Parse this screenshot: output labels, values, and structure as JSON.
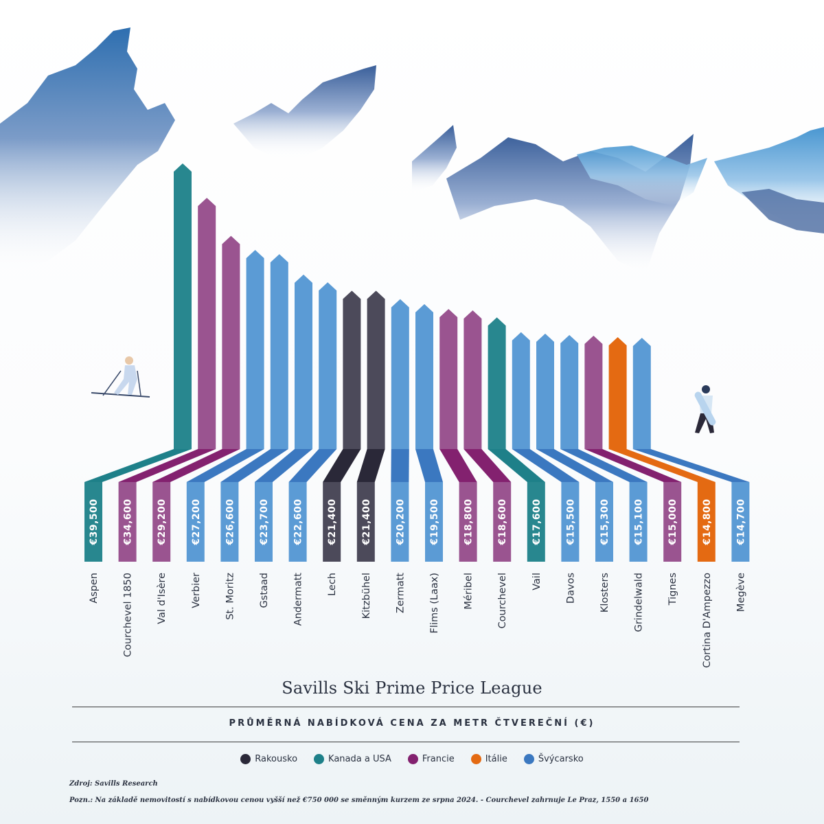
{
  "chart_data": {
    "type": "bar",
    "title": "Savills Ski Prime Price League",
    "ylabel": "PRŮMĚRNÁ NABÍDKOVÁ CENA ZA METR ČTVEREČNÍ (€)",
    "categories": [
      "Aspen",
      "Courchevel 1850",
      "Val d'Isère",
      "Verbier",
      "St. Moritz",
      "Gstaad",
      "Andermatt",
      "Lech",
      "Kitzbühel",
      "Zermatt",
      "Flims (Laax)",
      "Méribel",
      "Courchevel",
      "Vail",
      "Davos",
      "Klosters",
      "Grindelwald",
      "Tignes",
      "Cortina D'Ampezzo",
      "Megève"
    ],
    "values": [
      39500,
      34600,
      29200,
      27200,
      26600,
      23700,
      22600,
      21400,
      21400,
      20200,
      19500,
      18800,
      18600,
      17600,
      15500,
      15300,
      15100,
      15000,
      14800,
      14700
    ],
    "value_labels": [
      "€39,500",
      "€34,600",
      "€29,200",
      "€27,200",
      "€26,600",
      "€23,700",
      "€22,600",
      "€21,400",
      "€21,400",
      "€20,200",
      "€19,500",
      "€18,800",
      "€18,600",
      "€17,600",
      "€15,500",
      "€15,300",
      "€15,100",
      "€15,000",
      "€14,800",
      "€14,700"
    ],
    "regions": [
      "Kanada a USA",
      "Francie",
      "Francie",
      "Švýcarsko",
      "Švýcarsko",
      "Švýcarsko",
      "Švýcarsko",
      "Rakousko",
      "Rakousko",
      "Švýcarsko",
      "Švýcarsko",
      "Francie",
      "Francie",
      "Kanada a USA",
      "Švýcarsko",
      "Švýcarsko",
      "Švýcarsko",
      "Francie",
      "Itálie",
      "Švýcarsko"
    ],
    "legend": [
      {
        "name": "Rakousko",
        "color": "#2a2838",
        "light": "#4c4a5a"
      },
      {
        "name": "Kanada a USA",
        "color": "#1e8089",
        "light": "#28878f"
      },
      {
        "name": "Francie",
        "color": "#83216f",
        "light": "#9a5490"
      },
      {
        "name": "Itálie",
        "color": "#e46a12",
        "light": "#e46a12"
      },
      {
        "name": "Švýcarsko",
        "color": "#3b78c0",
        "light": "#5b9bd5"
      }
    ],
    "legend_position": "bottom",
    "grid": false
  },
  "source": "Zdroj: Savills Research",
  "note": "Pozn.: Na základě nemovitostí s nabídkovou cenou vyšší než €750 000 se směnným kurzem ze srpna 2024. - Courchevel zahrnuje Le Praz, 1550 a 1650"
}
